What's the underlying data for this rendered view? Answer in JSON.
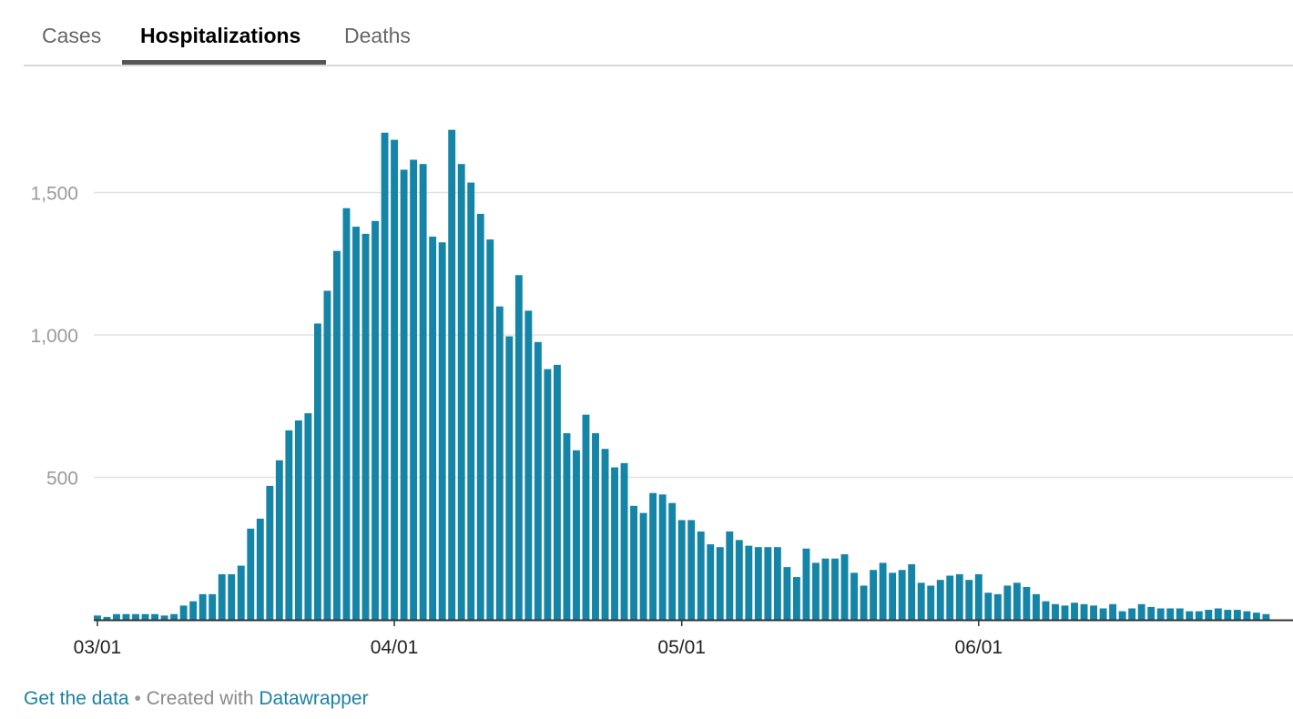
{
  "tabs": [
    {
      "label": "Cases",
      "active": false
    },
    {
      "label": "Hospitalizations",
      "active": true
    },
    {
      "label": "Deaths",
      "active": false
    }
  ],
  "footer": {
    "get_data": "Get the data",
    "separator": "•",
    "created_with": "Created with",
    "datawrapper": "Datawrapper"
  },
  "chart_data": {
    "type": "bar",
    "title": "",
    "xlabel": "",
    "ylabel": "",
    "ylim": [
      0,
      1700
    ],
    "y_ticks": [
      500,
      1000,
      1500
    ],
    "y_tick_labels": [
      "500",
      "1,000",
      "1,500"
    ],
    "x_tick_labels": [
      {
        "label": "03/01",
        "index": 0
      },
      {
        "label": "04/01",
        "index": 31
      },
      {
        "label": "05/01",
        "index": 61
      },
      {
        "label": "06/01",
        "index": 92
      }
    ],
    "grid": true,
    "bar_color": "#1585a7",
    "start_date": "03/01",
    "values": [
      15,
      10,
      20,
      20,
      20,
      20,
      20,
      15,
      20,
      50,
      65,
      90,
      90,
      160,
      160,
      190,
      320,
      355,
      470,
      560,
      665,
      700,
      725,
      1040,
      1155,
      1295,
      1445,
      1380,
      1355,
      1400,
      1710,
      1685,
      1580,
      1615,
      1600,
      1345,
      1325,
      1720,
      1600,
      1535,
      1425,
      1335,
      1100,
      995,
      1210,
      1085,
      975,
      880,
      895,
      655,
      595,
      720,
      655,
      600,
      535,
      550,
      400,
      375,
      445,
      440,
      410,
      350,
      350,
      310,
      265,
      255,
      310,
      280,
      260,
      255,
      255,
      255,
      185,
      150,
      250,
      200,
      215,
      215,
      230,
      165,
      120,
      175,
      200,
      165,
      175,
      195,
      130,
      120,
      140,
      155,
      160,
      140,
      160,
      95,
      90,
      120,
      130,
      115,
      90,
      65,
      55,
      50,
      60,
      55,
      50,
      40,
      55,
      30,
      40,
      55,
      45,
      40,
      40,
      40,
      30,
      30,
      35,
      40,
      35,
      35,
      30,
      25,
      20
    ]
  }
}
